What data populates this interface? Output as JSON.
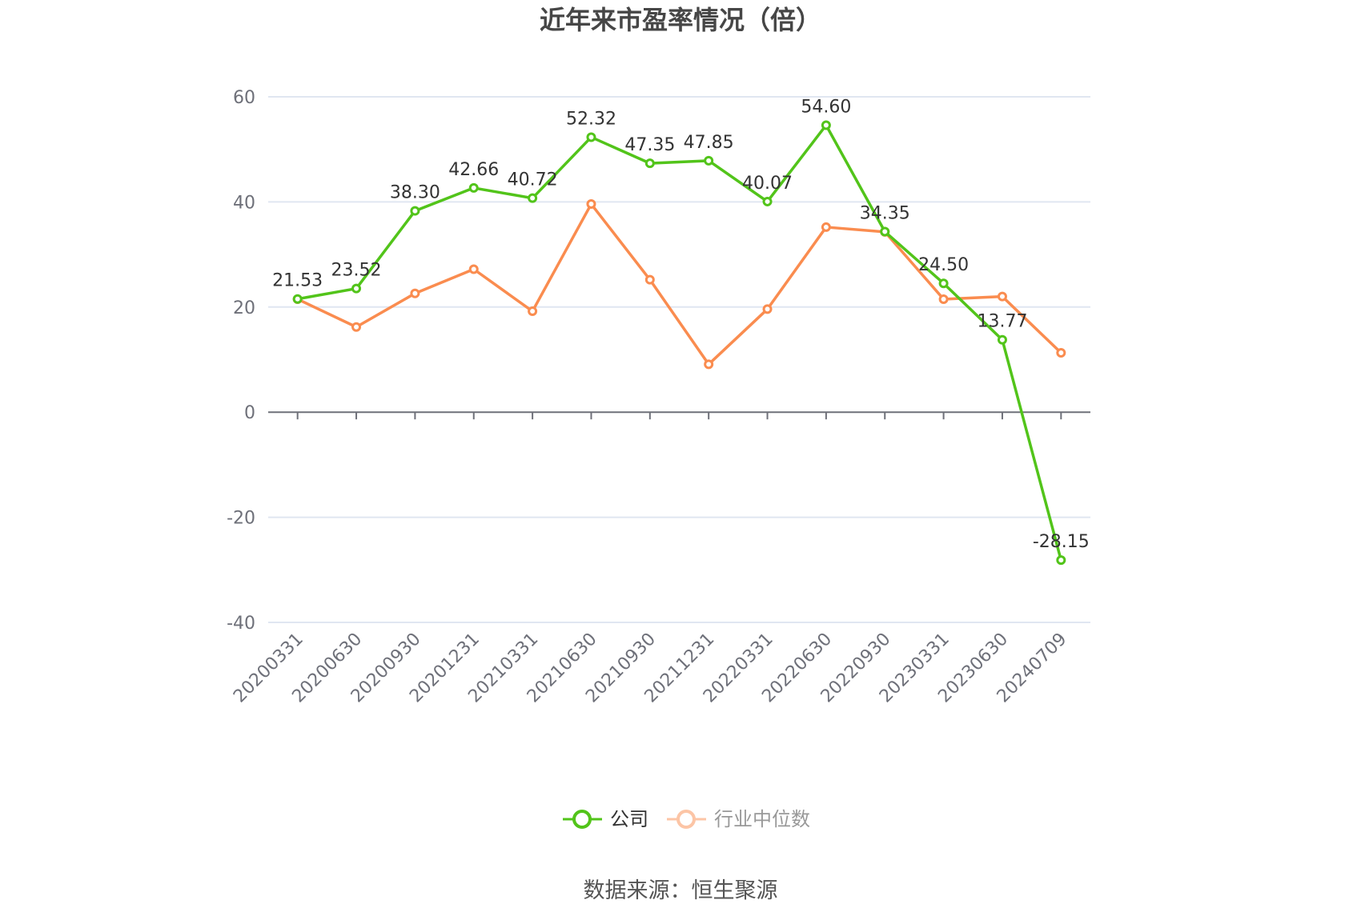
{
  "chart_data": {
    "type": "line",
    "title": "近年来市盈率情况（倍）",
    "categories": [
      "20200331",
      "20200630",
      "20200930",
      "20201231",
      "20210331",
      "20210630",
      "20210930",
      "20211231",
      "20220331",
      "20220630",
      "20220930",
      "20230331",
      "20230630",
      "20240709"
    ],
    "ylim": [
      -40,
      60
    ],
    "yticks": [
      -40,
      -20,
      0,
      20,
      40,
      60
    ],
    "grid": true,
    "legend_position": "bottom",
    "series": [
      {
        "name": "公司",
        "color": "#52c41a",
        "show_labels": true,
        "values": [
          21.53,
          23.52,
          38.3,
          42.66,
          40.72,
          52.32,
          47.35,
          47.85,
          40.07,
          54.6,
          34.35,
          24.5,
          13.77,
          -28.15
        ],
        "labels": [
          "21.53",
          "23.52",
          "38.30",
          "42.66",
          "40.72",
          "52.32",
          "47.35",
          "47.85",
          "40.07",
          "54.60",
          "34.35",
          "24.50",
          "13.77",
          "-28.15"
        ]
      },
      {
        "name": "行业中位数",
        "color": "#fa8c4f",
        "show_labels": false,
        "values": [
          21.5,
          16.2,
          22.6,
          27.2,
          19.2,
          39.6,
          25.2,
          9.1,
          19.6,
          35.2,
          34.3,
          21.5,
          22.0,
          11.3
        ]
      }
    ]
  },
  "source": "数据来源：恒生聚源"
}
